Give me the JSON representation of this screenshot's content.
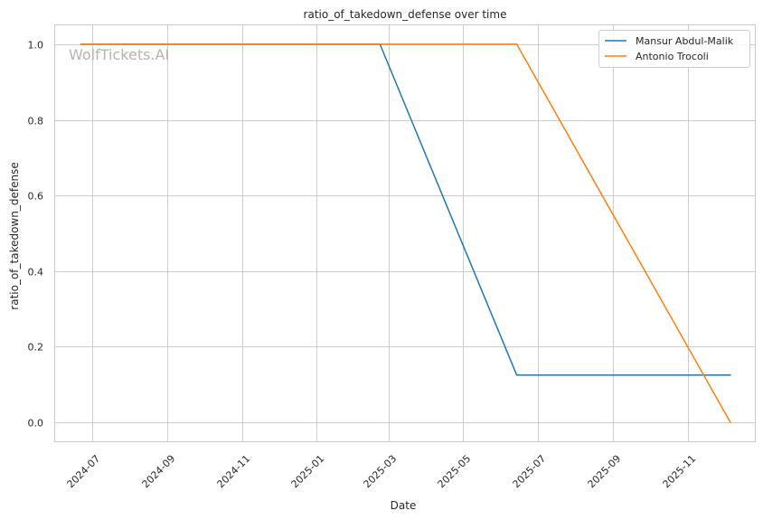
{
  "chart_data": {
    "type": "line",
    "title": "ratio_of_takedown_defense over time",
    "xlabel": "Date",
    "ylabel": "ratio_of_takedown_defense",
    "watermark": "WolfTickets.AI",
    "x_ticks": [
      "2024-07",
      "2024-09",
      "2024-11",
      "2025-01",
      "2025-03",
      "2025-05",
      "2025-07",
      "2025-09",
      "2025-11"
    ],
    "y_ticks": [
      "0.0",
      "0.2",
      "0.4",
      "0.6",
      "0.8",
      "1.0"
    ],
    "xlim": [
      "2024-06-01",
      "2025-12-26"
    ],
    "ylim": [
      -0.05,
      1.05
    ],
    "grid": true,
    "legend": "top-right",
    "series": [
      {
        "name": "Mansur Abdul-Malik",
        "color": "#1f77b4",
        "points": [
          {
            "x": "2024-06-22",
            "y": 1.0
          },
          {
            "x": "2025-02-22",
            "y": 1.0
          },
          {
            "x": "2025-06-14",
            "y": 0.125
          },
          {
            "x": "2025-12-06",
            "y": 0.125
          }
        ]
      },
      {
        "name": "Antonio Trocoli",
        "color": "#ff7f0e",
        "points": [
          {
            "x": "2024-06-22",
            "y": 1.0
          },
          {
            "x": "2025-06-14",
            "y": 1.0
          },
          {
            "x": "2025-12-06",
            "y": 0.0
          }
        ]
      }
    ]
  }
}
